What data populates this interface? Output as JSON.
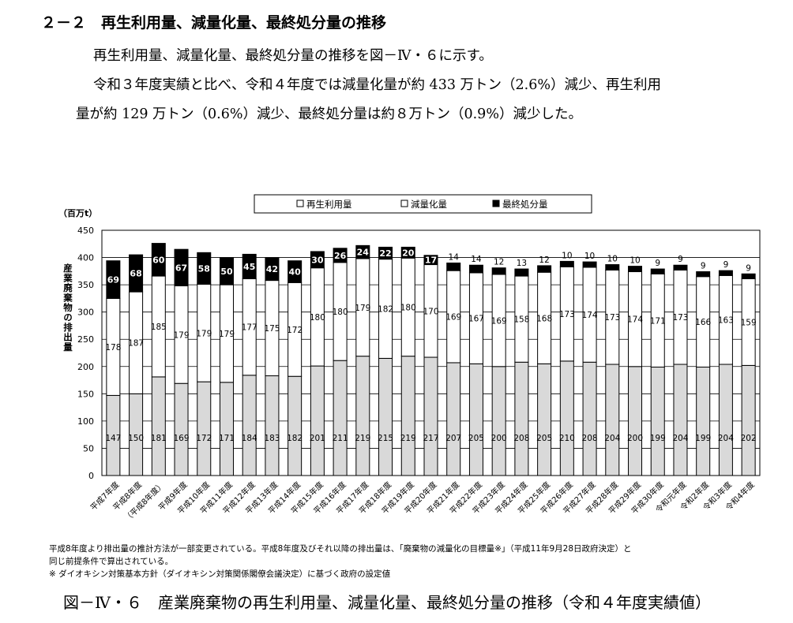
{
  "heading": "２－２　再生利用量、減量化量、最終処分量の推移",
  "paragraphs": [
    "再生利用量、減量化量、最終処分量の推移を図－Ⅳ・６に示す。",
    "令和３年度実績と比べ、令和４年度では減量化量が約 433 万トン（2.6%）減少、再生利用",
    "量が約 129 万トン（0.6%）減少、最終処分量は約８万トン（0.9%）減少した。"
  ],
  "notes": [
    "平成8年度より排出量の推計方法が一部変更されている。平成8年度及びそれ以降の排出量は、「廃棄物の減量化の目標量※」（平成11年9月28日政府決定）と",
    "同じ前提条件で算出されている。",
    "※ ダイオキシン対策基本方針（ダイオキシン対策関係閣僚会議決定）に基づく政府の設定値"
  ],
  "caption": "図－Ⅳ・６　産業廃棄物の再生利用量、減量化量、最終処分量の推移（令和４年度実績値）",
  "colors": {
    "recycle": "#d9d9d9",
    "reduce": "#ffffff",
    "final": "#000000",
    "grid": "#000000"
  },
  "chart_data": {
    "type": "bar",
    "stacked": true,
    "unit_label": "（百万t）",
    "ylabel": "産業廃棄物の排出量",
    "ylim": [
      0,
      450
    ],
    "yticks": [
      0,
      50,
      100,
      150,
      200,
      250,
      300,
      350,
      400,
      450
    ],
    "grid": true,
    "legend_position": "top",
    "categories": [
      "平成7年度",
      "平成8年度",
      "（平成8年度）",
      "平成9年度",
      "平成10年度",
      "平成11年度",
      "平成12年度",
      "平成13年度",
      "平成14年度",
      "平成15年度",
      "平成16年度",
      "平成17年度",
      "平成18年度",
      "平成19年度",
      "平成20年度",
      "平成21年度",
      "平成22年度",
      "平成23年度",
      "平成24年度",
      "平成25年度",
      "平成26年度",
      "平成27年度",
      "平成28年度",
      "平成29年度",
      "平成30年度",
      "令和元年度",
      "令和2年度",
      "令和3年度",
      "令和4年度"
    ],
    "series": [
      {
        "name": "再生利用量",
        "values": [
          147,
          150,
          181,
          169,
          172,
          171,
          184,
          183,
          182,
          201,
          211,
          219,
          215,
          219,
          217,
          207,
          205,
          200,
          208,
          205,
          210,
          208,
          204,
          200,
          199,
          204,
          199,
          204,
          202
        ]
      },
      {
        "name": "減量化量",
        "values": [
          178,
          187,
          185,
          179,
          179,
          179,
          177,
          175,
          172,
          180,
          180,
          179,
          182,
          180,
          170,
          169,
          167,
          169,
          158,
          168,
          173,
          174,
          173,
          174,
          171,
          173,
          166,
          163,
          159
        ]
      },
      {
        "name": "最終処分量",
        "values": [
          69,
          68,
          60,
          67,
          58,
          50,
          45,
          42,
          40,
          30,
          26,
          24,
          22,
          20,
          17,
          14,
          14,
          12,
          13,
          12,
          10,
          10,
          10,
          10,
          9,
          9,
          9,
          9,
          9
        ]
      }
    ]
  }
}
